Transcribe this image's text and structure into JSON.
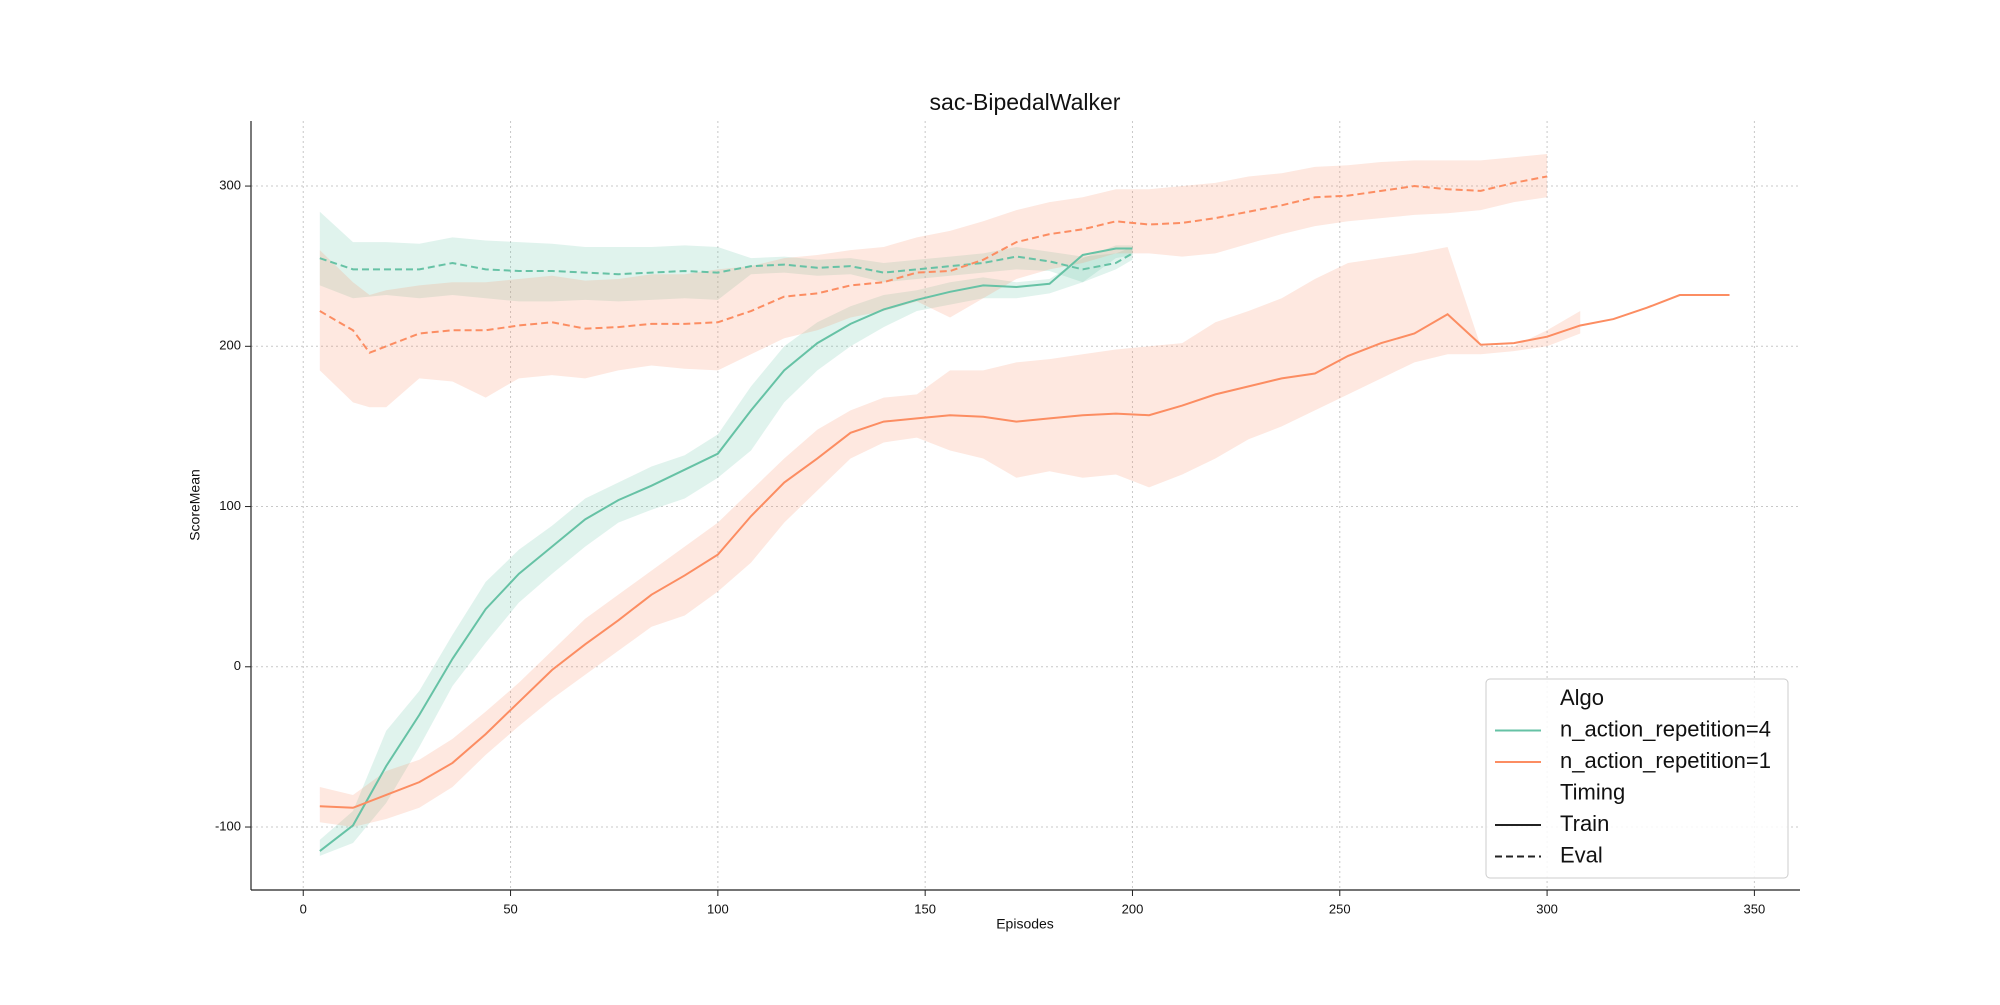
{
  "chart_data": {
    "type": "line",
    "title": "sac-BipedalWalker",
    "x_label": "Episodes",
    "y_label": "ScoreMean",
    "xlim": [
      -12.6,
      361
    ],
    "ylim": [
      -139.3,
      340.6
    ],
    "xticks": [
      0,
      50,
      100,
      150,
      200,
      250,
      300,
      350
    ],
    "yticks": [
      -100,
      0,
      100,
      200,
      300
    ],
    "grid": true,
    "legend": {
      "position": "lower right",
      "groups": [
        {
          "title": "Algo",
          "entries": [
            {
              "label": "n_action_repetition=4",
              "color": "#66c2a5",
              "dash": "solid"
            },
            {
              "label": "n_action_repetition=1",
              "color": "#fc8d62",
              "dash": "solid"
            }
          ]
        },
        {
          "title": "Timing",
          "entries": [
            {
              "label": "Train",
              "color": "#222222",
              "dash": "solid"
            },
            {
              "label": "Eval",
              "color": "#222222",
              "dash": "dashed"
            }
          ]
        }
      ]
    },
    "series": [
      {
        "color": "#66c2a5",
        "dash": "solid",
        "x": [
          4,
          12,
          20,
          28,
          36,
          44,
          52,
          60,
          68,
          76,
          84,
          92,
          100,
          108,
          116,
          124,
          132,
          140,
          148,
          156,
          164,
          172,
          180,
          188,
          196,
          200
        ],
        "values": [
          -115,
          -99,
          -62,
          -30,
          5,
          36,
          58,
          75,
          92,
          104,
          113,
          123,
          133,
          160,
          185,
          202,
          214,
          223,
          229,
          234,
          238,
          237,
          239,
          257,
          261,
          261
        ],
        "lower": [
          -118,
          -110,
          -85,
          -50,
          -12,
          15,
          40,
          58,
          75,
          90,
          98,
          105,
          118,
          135,
          165,
          185,
          200,
          212,
          222,
          226,
          230,
          230,
          233,
          240,
          255,
          257
        ],
        "upper": [
          -108,
          -90,
          -40,
          -15,
          20,
          53,
          73,
          88,
          105,
          115,
          125,
          132,
          145,
          175,
          200,
          215,
          225,
          232,
          235,
          240,
          243,
          240,
          242,
          255,
          263,
          263
        ]
      },
      {
        "color": "#fc8d62",
        "dash": "solid",
        "x": [
          4,
          12,
          20,
          28,
          36,
          44,
          52,
          60,
          68,
          76,
          84,
          92,
          100,
          108,
          116,
          124,
          132,
          140,
          148,
          156,
          164,
          172,
          180,
          188,
          196,
          204,
          212,
          220,
          228,
          236,
          244,
          252,
          260,
          268,
          276,
          284,
          292,
          300,
          308,
          316,
          324,
          332,
          340,
          344
        ],
        "values": [
          -87,
          -88,
          -80,
          -72,
          -60,
          -42,
          -22,
          -2,
          14,
          29,
          45,
          57,
          70,
          94,
          115,
          130,
          146,
          153,
          155,
          157,
          156,
          153,
          155,
          157,
          158,
          157,
          163,
          170,
          175,
          180,
          183,
          194,
          202,
          208,
          220,
          201,
          202,
          206,
          213,
          217,
          224,
          232,
          232,
          232
        ],
        "lower": [
          -97,
          -100,
          -95,
          -88,
          -75,
          -55,
          -37,
          -20,
          -5,
          10,
          25,
          32,
          47,
          65,
          90,
          110,
          130,
          140,
          143,
          135,
          130,
          118,
          122,
          118,
          120,
          112,
          120,
          130,
          142,
          150,
          160,
          170,
          180,
          190,
          195,
          195,
          197,
          200,
          208,
          null,
          null,
          null,
          null,
          null
        ],
        "upper": [
          -75,
          -80,
          -65,
          -58,
          -45,
          -28,
          -10,
          10,
          30,
          45,
          60,
          75,
          90,
          110,
          130,
          148,
          160,
          168,
          170,
          185,
          185,
          190,
          192,
          195,
          198,
          200,
          202,
          215,
          222,
          230,
          242,
          252,
          255,
          258,
          262,
          200,
          200,
          210,
          222,
          null,
          null,
          null,
          null,
          null
        ]
      },
      {
        "color": "#66c2a5",
        "dash": "dashed",
        "x": [
          4,
          12,
          20,
          28,
          36,
          44,
          52,
          60,
          68,
          76,
          84,
          92,
          100,
          108,
          116,
          124,
          132,
          140,
          148,
          156,
          164,
          172,
          180,
          188,
          196,
          200
        ],
        "values": [
          255,
          248,
          248,
          248,
          252,
          248,
          247,
          247,
          246,
          245,
          246,
          247,
          246,
          250,
          251,
          249,
          250,
          246,
          248,
          250,
          252,
          256,
          253,
          248,
          252,
          258
        ],
        "lower": [
          238,
          230,
          232,
          230,
          232,
          230,
          228,
          228,
          229,
          228,
          229,
          230,
          229,
          245,
          246,
          244,
          245,
          240,
          242,
          244,
          246,
          248,
          247,
          240,
          248,
          254
        ],
        "upper": [
          284,
          265,
          265,
          264,
          268,
          266,
          265,
          264,
          262,
          262,
          262,
          263,
          262,
          255,
          256,
          254,
          255,
          252,
          254,
          256,
          258,
          262,
          259,
          256,
          258,
          262
        ]
      },
      {
        "color": "#fc8d62",
        "dash": "dashed",
        "x": [
          4,
          12,
          16,
          20,
          28,
          36,
          44,
          52,
          60,
          68,
          76,
          84,
          92,
          100,
          108,
          116,
          124,
          132,
          140,
          148,
          156,
          164,
          172,
          180,
          188,
          196,
          204,
          212,
          220,
          228,
          236,
          244,
          252,
          260,
          268,
          276,
          284,
          292,
          300
        ],
        "values": [
          222,
          210,
          196,
          200,
          208,
          210,
          210,
          213,
          215,
          211,
          212,
          214,
          214,
          215,
          222,
          231,
          233,
          238,
          240,
          246,
          247,
          254,
          265,
          270,
          273,
          278,
          276,
          277,
          280,
          284,
          288,
          293,
          294,
          297,
          300,
          298,
          297,
          302,
          306
        ],
        "lower": [
          185,
          165,
          162,
          162,
          180,
          178,
          168,
          180,
          182,
          180,
          185,
          188,
          186,
          185,
          195,
          205,
          210,
          218,
          222,
          228,
          218,
          230,
          242,
          248,
          252,
          258,
          258,
          256,
          258,
          264,
          270,
          275,
          278,
          280,
          282,
          283,
          285,
          290,
          293
        ],
        "upper": [
          260,
          240,
          232,
          235,
          238,
          240,
          240,
          242,
          244,
          241,
          242,
          245,
          245,
          248,
          250,
          255,
          257,
          260,
          262,
          268,
          272,
          278,
          285,
          290,
          293,
          298,
          298,
          300,
          302,
          306,
          308,
          312,
          313,
          315,
          316,
          316,
          316,
          318,
          320
        ]
      }
    ]
  }
}
